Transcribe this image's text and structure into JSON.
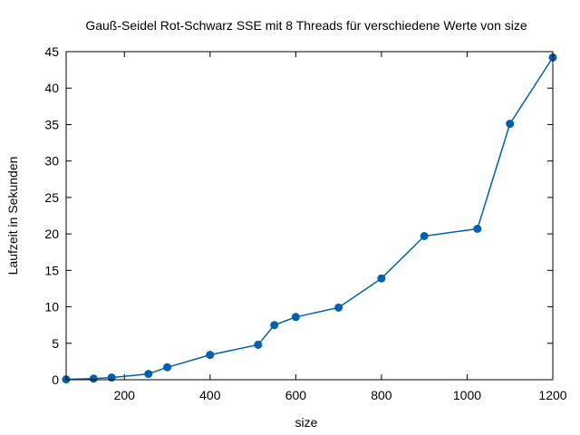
{
  "chart_data": {
    "type": "line",
    "title": "Gauß-Seidel Rot-Schwarz SSE mit 8 Threads für verschiedene Werte von size",
    "xlabel": "size",
    "ylabel": "Laufzeit in Sekunden",
    "xlim": [
      64,
      1200
    ],
    "ylim": [
      0,
      45
    ],
    "xticks": [
      200,
      400,
      600,
      800,
      1000,
      1200
    ],
    "yticks": [
      0,
      5,
      10,
      15,
      20,
      25,
      30,
      35,
      40,
      45
    ],
    "grid": false,
    "legend": "none",
    "series": [
      {
        "color": "#0060ad",
        "marker": "circle",
        "x": [
          64,
          128,
          170,
          256,
          300,
          400,
          512,
          550,
          600,
          700,
          800,
          900,
          1024,
          1100,
          1200
        ],
        "y": [
          0.05,
          0.15,
          0.3,
          0.8,
          1.7,
          3.4,
          4.8,
          7.5,
          8.6,
          9.9,
          13.9,
          19.7,
          20.7,
          35.1,
          44.2
        ]
      }
    ]
  }
}
